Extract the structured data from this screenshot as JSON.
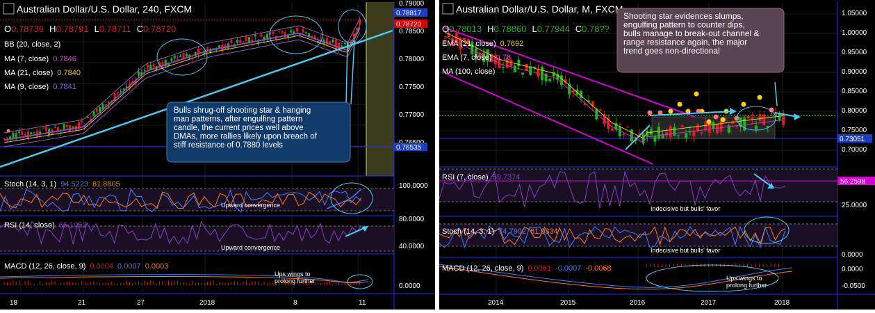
{
  "colors": {
    "bg": "#000000",
    "grid": "#1c1c1c",
    "axis": "#2b2bff",
    "bull": "#1db31d",
    "bear": "#e31a1a",
    "cyan": "#4cc9f0",
    "magenta": "#d400d4",
    "bb": "#9b59b6",
    "ma7": "#c03cc0",
    "ma21": "#e8c81c",
    "ma9": "#5b63c8",
    "stoch_k": "#3f7fff",
    "stoch_d": "#ff7a1a",
    "rsi": "#8a3fbf",
    "macd": "#3f7fff",
    "signal": "#ff7a1a",
    "price_tag": "#1a3fbf",
    "last_tag": "#d60000",
    "note_fill": "#103a6a",
    "note2_fill": "#5a4452"
  },
  "left": {
    "title": "Australian Dollar/U.S. Dollar, 240, FXCM",
    "ohlc": {
      "o_label": "O",
      "o": "0.78736",
      "h_label": "H",
      "h": "0.78791",
      "l_label": "L",
      "l": "0.78711",
      "c_label": "C",
      "c": "0.78720"
    },
    "indicators": [
      {
        "label": "BB (20, close, 2)",
        "value": ""
      },
      {
        "label": "MA (7, close)",
        "value": "0.7846"
      },
      {
        "label": "MA (21, close)",
        "value": "0.7840"
      },
      {
        "label": "MA (9, close)",
        "value": "0.7841"
      }
    ],
    "price_axis": [
      "0.79000",
      "0.78500",
      "0.78000",
      "0.77500",
      "0.77000",
      "0.76500"
    ],
    "price_tags": {
      "top": "0.78817",
      "last": "0.78720",
      "low": "0.76535"
    },
    "note": "Bulls shrug-off shooting star & hanging man patterns, after engulfing pattern candle, the current prices well above DMAs, more rallies likely upon breach of stiff resistance of 0.7880 levels",
    "stoch": {
      "label": "Stoch (14, 3, 1)",
      "k": "94.5223",
      "d": "81.8805",
      "axis": "100.0000",
      "note": "Upward convergence"
    },
    "rsi": {
      "label": "RSI (14, close)",
      "value": "66.1053",
      "axis_top": "80.0000",
      "axis_bottom": "40.0000",
      "note": "Upward convergence"
    },
    "macd": {
      "label": "MACD (12, 26, close, 9)",
      "macd": "0.0004",
      "signal": "0.0007",
      "hist": "0.0003",
      "axis": "0.0000",
      "note": "Ups wings to prolong further"
    },
    "x_labels": [
      "18",
      "21",
      "27",
      "2018",
      "8",
      "11"
    ]
  },
  "right": {
    "title": "Australian Dollar/U.S. Dollar, M, FXCM",
    "ohlc": {
      "o_label": "O",
      "o": "0.78013",
      "h_label": "H",
      "h": "0.78860",
      "l_label": "L",
      "l": "0.77944",
      "c_label": "C",
      "c": "0.78??"
    },
    "indicators": [
      {
        "label": "EMA (21, close)",
        "value": "0.7692"
      },
      {
        "label": "EMA (7, close)",
        "value": "0.78"
      },
      {
        "label": "MA (100, close)",
        "value": ""
      }
    ],
    "price_axis": [
      "1.05000",
      "1.00000",
      "0.95000",
      "0.90000",
      "0.85000",
      "0.80000",
      "0.75000",
      "0.70000"
    ],
    "price_tags": {
      "low": "0.73051",
      "rsi": "56.2598"
    },
    "note": "Shooting star evidences slumps, engulfing pattern to counter dips, bulls manage to break-out channel & range resistance again, the major trend goes non-directional",
    "rsi": {
      "label": "RSI (7, close)",
      "value": "59.7374",
      "axis": "25.0000",
      "note": "Indecisive but bulls' favor"
    },
    "stoch": {
      "label": "Stoch (14, 3, 1)",
      "k": "74.7902",
      "d": "61.0334",
      "axis": "0.0000",
      "note": "Indecisive but bulls' favor"
    },
    "macd": {
      "label": "MACD (12, 26, close, 9)",
      "macd": "0.0061",
      "signal": "-0.0007",
      "hist": "-0.0068",
      "axis": "-0.0500",
      "note": "Ups wings to prolong further"
    },
    "x_labels": [
      "2014",
      "2015",
      "2016",
      "2017",
      "2018"
    ]
  },
  "chart_data": [
    {
      "type": "line",
      "title": "Australian Dollar/U.S. Dollar, 240, FXCM",
      "x": [
        "18",
        "21",
        "27",
        "2018",
        "8",
        "11"
      ],
      "series": [],
      "y_range": [
        0.7625,
        0.79
      ],
      "stoch_range": [
        0,
        100
      ],
      "rsi_range": [
        20,
        90
      ]
    },
    {
      "type": "line",
      "title": "Australian Dollar/U.S. Dollar, M, FXCM",
      "x": [
        "2014",
        "2015",
        "2016",
        "2017",
        "2018"
      ],
      "series": [],
      "y_range": [
        0.68,
        1.06
      ]
    }
  ]
}
